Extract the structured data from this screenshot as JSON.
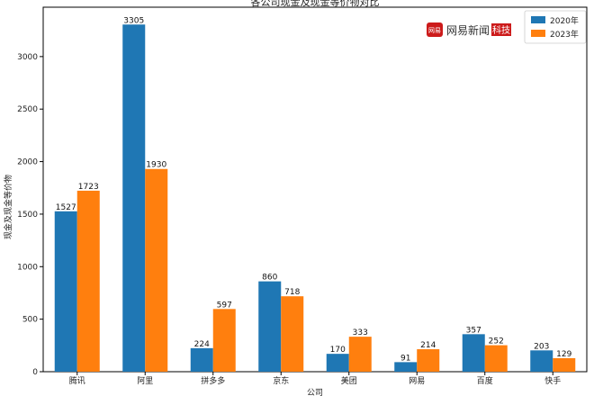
{
  "chart_data": {
    "type": "bar",
    "title": "各公司现金及现金等价物对比",
    "xlabel": "公司",
    "ylabel": "现金及现金等价物",
    "categories": [
      "腾讯",
      "阿里",
      "拼多多",
      "京东",
      "美团",
      "网易",
      "百度",
      "快手"
    ],
    "series": [
      {
        "name": "2020年",
        "values": [
          1527,
          3305,
          224,
          860,
          170,
          91,
          357,
          203
        ],
        "color": "#1f77b4"
      },
      {
        "name": "2023年",
        "values": [
          1723,
          1930,
          597,
          718,
          333,
          214,
          252,
          129
        ],
        "color": "#ff7f0e"
      }
    ],
    "ylim": [
      0,
      3470
    ],
    "yticks": [
      0,
      500,
      1000,
      1500,
      2000,
      2500,
      3000
    ],
    "grid": false,
    "legend_position": "top-right"
  },
  "watermark": {
    "badge": "网易",
    "text": "网易新闻",
    "tech": "科技",
    "color": "#cc1a1a"
  }
}
